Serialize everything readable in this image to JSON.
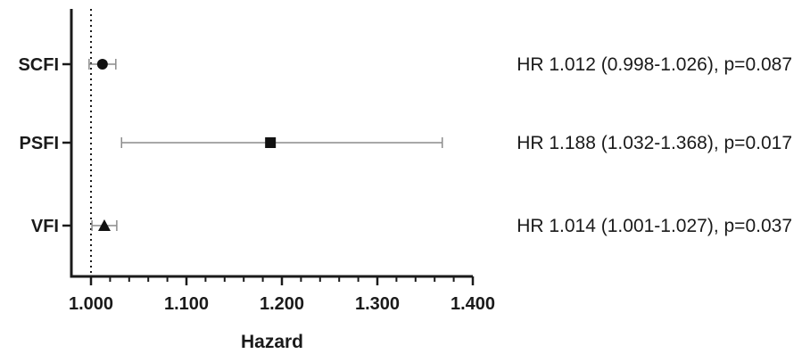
{
  "chart_data": {
    "type": "forest",
    "xlabel": "Hazard",
    "xlim": [
      0.98,
      1.4
    ],
    "xticks": [
      1.0,
      1.1,
      1.2,
      1.3,
      1.4
    ],
    "xtick_labels": [
      "1.000",
      "1.100",
      "1.200",
      "1.300",
      "1.400"
    ],
    "reference_line": 1.0,
    "rows": [
      {
        "label": "SCFI",
        "marker": "circle",
        "hr": 1.012,
        "lower": 0.998,
        "upper": 1.026,
        "annotation": "HR 1.012 (0.998-1.026), p=0.087"
      },
      {
        "label": "PSFI",
        "marker": "square",
        "hr": 1.188,
        "lower": 1.032,
        "upper": 1.368,
        "annotation": "HR 1.188 (1.032-1.368), p=0.017"
      },
      {
        "label": "VFI",
        "marker": "triangle",
        "hr": 1.014,
        "lower": 1.001,
        "upper": 1.027,
        "annotation": "HR 1.014 (1.001-1.027), p=0.037"
      }
    ],
    "colors": {
      "axis": "#1a1a1a",
      "marker": "#111111",
      "whisker": "#8c8c8c"
    }
  }
}
